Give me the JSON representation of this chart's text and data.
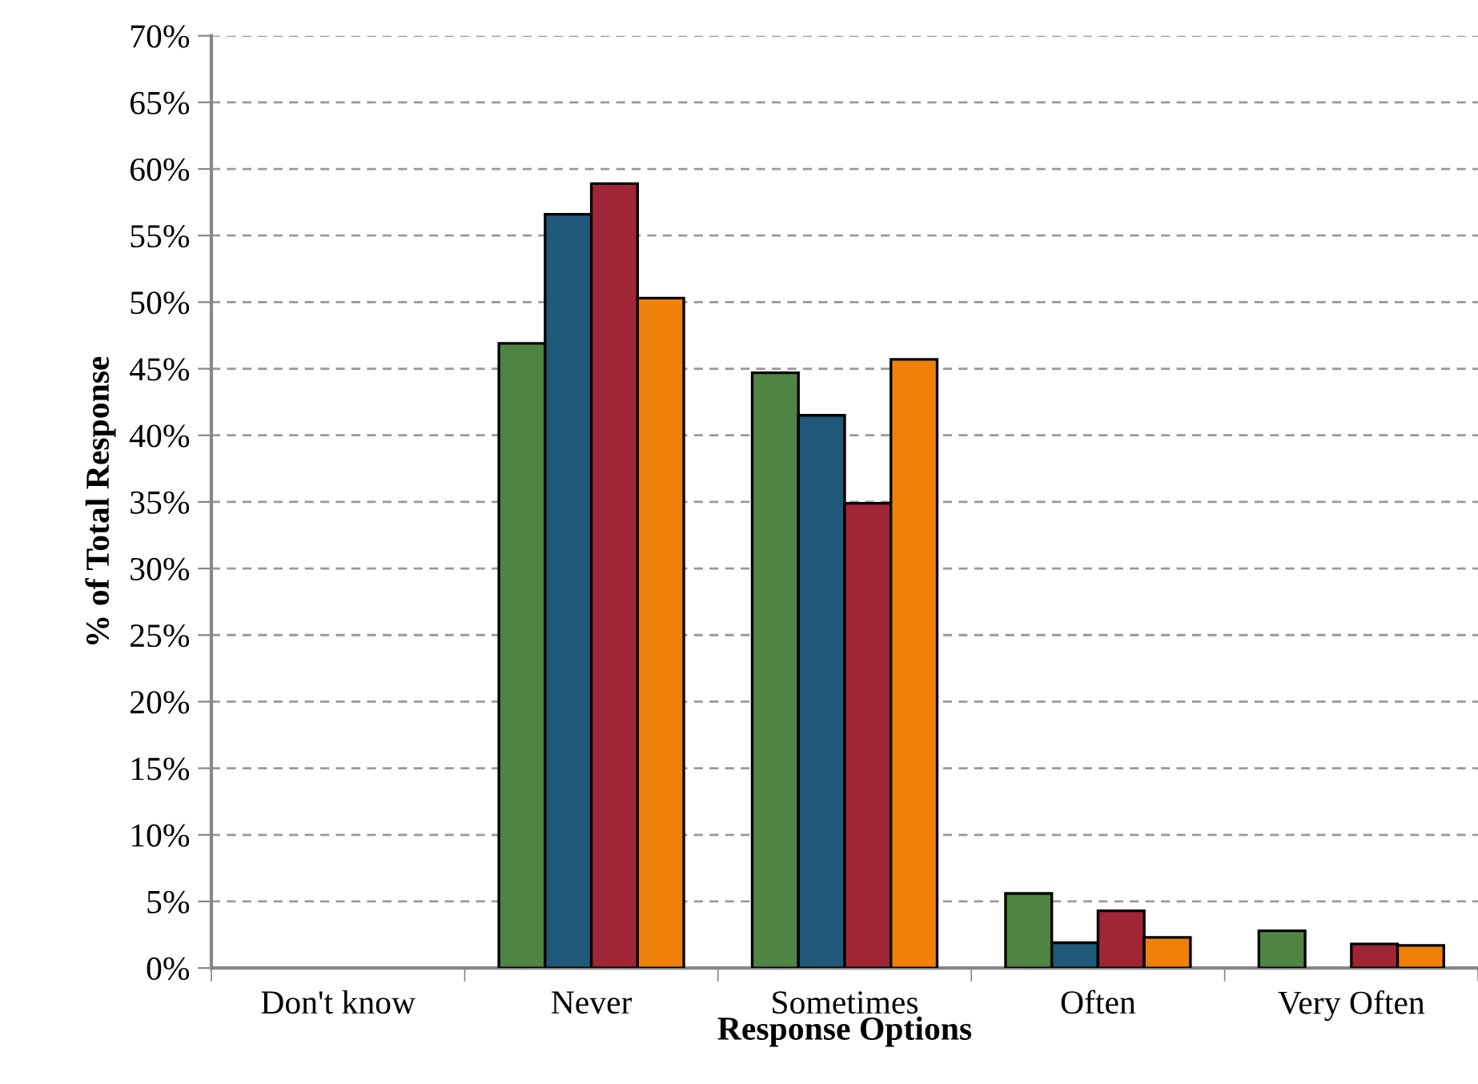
{
  "chart_data": {
    "type": "bar",
    "xlabel": "Response Options",
    "ylabel": "% of Total Response",
    "categories": [
      "Don't know",
      "Never",
      "Sometimes",
      "Often",
      "Very Often"
    ],
    "series": [
      {
        "color": "#4f8443",
        "values": [
          null,
          46.9,
          44.7,
          5.6,
          2.8
        ]
      },
      {
        "color": "#1f5878",
        "values": [
          null,
          56.6,
          41.5,
          1.9,
          null
        ]
      },
      {
        "color": "#a02536",
        "values": [
          null,
          58.9,
          34.9,
          4.3,
          1.8
        ]
      },
      {
        "color": "#ef800a",
        "values": [
          null,
          50.3,
          45.7,
          2.3,
          1.7
        ]
      }
    ],
    "ylim": [
      0,
      70
    ],
    "yticks": [
      {
        "value": 0,
        "label": "0%"
      },
      {
        "value": 5,
        "label": "5%"
      },
      {
        "value": 10,
        "label": "10%"
      },
      {
        "value": 15,
        "label": "15%"
      },
      {
        "value": 20,
        "label": "20%"
      },
      {
        "value": 25,
        "label": "25%"
      },
      {
        "value": 30,
        "label": "30%"
      },
      {
        "value": 35,
        "label": "35%"
      },
      {
        "value": 40,
        "label": "40%"
      },
      {
        "value": 45,
        "label": "45%"
      },
      {
        "value": 50,
        "label": "50%"
      },
      {
        "value": 55,
        "label": "55%"
      },
      {
        "value": 60,
        "label": "60%"
      },
      {
        "value": 65,
        "label": "65%"
      },
      {
        "value": 70,
        "label": "70%"
      }
    ],
    "grid": "y",
    "legend": false
  }
}
